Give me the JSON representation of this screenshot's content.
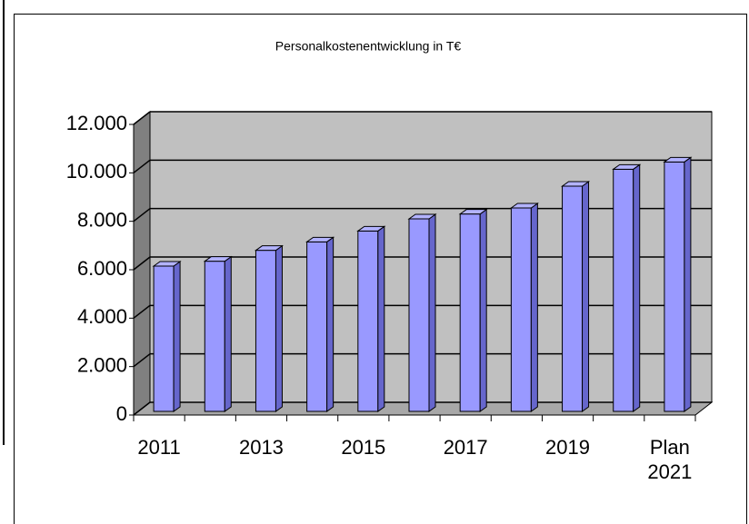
{
  "chart_data": {
    "type": "bar3d",
    "title": "Personalkostenentwicklung in T€",
    "categories": [
      "2011",
      null,
      "2013",
      null,
      "2015",
      null,
      "2017",
      null,
      "2019",
      null,
      "Plan 2021"
    ],
    "values": [
      6000,
      6200,
      6650,
      7000,
      7450,
      7950,
      8150,
      8400,
      9300,
      10000,
      10300
    ],
    "color": "#9999ff",
    "ylim": [
      0,
      12000
    ],
    "yticks": [
      0,
      {
        "value": 2000,
        "label": "2.000"
      },
      {
        "value": 4000,
        "label": "4.000"
      },
      {
        "value": 6000,
        "label": "6.000"
      },
      {
        "value": 8000,
        "label": "8.000"
      },
      {
        "value": 10000,
        "label": "10.000"
      },
      {
        "value": 12000,
        "label": "12.000"
      }
    ],
    "grid": true
  }
}
